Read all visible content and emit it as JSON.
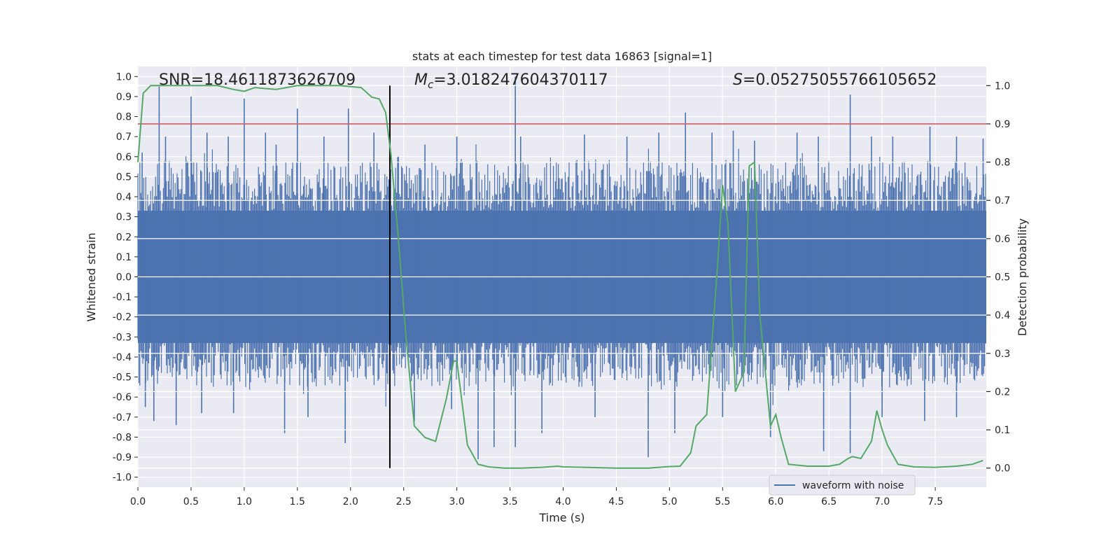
{
  "chart_data": {
    "type": "line",
    "title": "stats at each timestep for test data 16863 [signal=1]",
    "xlabel": "Time (s)",
    "ylabel": "Whitened strain",
    "y2label": "Detection probability",
    "xlim": [
      0.0,
      7.98
    ],
    "ylim": [
      -1.05,
      1.05
    ],
    "y2lim": [
      -0.05,
      1.05
    ],
    "x_ticks": [
      0.0,
      0.5,
      1.0,
      1.5,
      2.0,
      2.5,
      3.0,
      3.5,
      4.0,
      4.5,
      5.0,
      5.5,
      6.0,
      6.5,
      7.0,
      7.5
    ],
    "x_tick_labels": [
      "0.0",
      "0.5",
      "1.0",
      "1.5",
      "2.0",
      "2.5",
      "3.0",
      "3.5",
      "4.0",
      "4.5",
      "5.0",
      "5.5",
      "6.0",
      "6.5",
      "7.0",
      "7.5"
    ],
    "y_ticks": [
      1.0,
      0.9,
      0.8,
      0.7,
      0.6,
      0.5,
      0.4,
      0.3,
      0.2,
      0.1,
      0.0,
      -0.1,
      -0.2,
      -0.3,
      -0.4,
      -0.5,
      -0.6,
      -0.7,
      -0.8,
      -0.9,
      -1.0
    ],
    "y_tick_labels": [
      "1.0",
      "0.9",
      "0.8",
      "0.7",
      "0.6",
      "0.5",
      "0.4",
      "0.3",
      "0.2",
      "0.1",
      "0.0",
      "-0.1",
      "-0.2",
      "-0.3",
      "-0.4",
      "-0.5",
      "-0.6",
      "-0.7",
      "-0.8",
      "-0.9",
      "-1.0"
    ],
    "y2_ticks": [
      1.0,
      0.9,
      0.8,
      0.7,
      0.6,
      0.5,
      0.4,
      0.3,
      0.2,
      0.1,
      0.0
    ],
    "y2_tick_labels": [
      "1.0",
      "0.9",
      "0.8",
      "0.7",
      "0.6",
      "0.5",
      "0.4",
      "0.3",
      "0.2",
      "0.1",
      "0.0"
    ],
    "grid": true,
    "annotations": {
      "snr": "SNR=18.4611873626709",
      "mc_symbol": "M",
      "mc_subscript": "c",
      "mc_value": "=3.018247604370117",
      "s_symbol": "S",
      "s_value": "=0.05275055766105652"
    },
    "threshold_line": {
      "y2": 0.9,
      "color": "#c44e52"
    },
    "vertical_marker": {
      "x": 2.37,
      "y2_range": [
        0.0,
        1.0
      ],
      "color": "#000000"
    },
    "waveform": {
      "name": "waveform with noise",
      "color": "#4c72b0",
      "core_band": [
        -0.33,
        0.33
      ],
      "spikes_up": [
        [
          0.04,
          0.62
        ],
        [
          0.2,
          0.95
        ],
        [
          0.26,
          0.7
        ],
        [
          0.5,
          0.9
        ],
        [
          0.65,
          0.72
        ],
        [
          0.85,
          0.7
        ],
        [
          1.0,
          0.89
        ],
        [
          1.2,
          0.72
        ],
        [
          1.3,
          0.66
        ],
        [
          1.5,
          0.84
        ],
        [
          1.75,
          0.7
        ],
        [
          1.98,
          0.84
        ],
        [
          2.22,
          0.72
        ],
        [
          2.45,
          0.6
        ],
        [
          2.7,
          0.66
        ],
        [
          3.0,
          0.7
        ],
        [
          3.55,
          1.0
        ],
        [
          3.6,
          0.7
        ],
        [
          4.2,
          0.71
        ],
        [
          4.6,
          0.7
        ],
        [
          4.9,
          0.72
        ],
        [
          5.15,
          0.82
        ],
        [
          5.4,
          0.72
        ],
        [
          5.6,
          0.73
        ],
        [
          5.8,
          0.68
        ],
        [
          6.2,
          0.72
        ],
        [
          6.4,
          0.7
        ],
        [
          6.7,
          0.91
        ],
        [
          6.9,
          0.7
        ],
        [
          7.1,
          0.7
        ],
        [
          7.45,
          0.75
        ],
        [
          7.7,
          0.7
        ],
        [
          7.95,
          0.69
        ]
      ],
      "spikes_down": [
        [
          0.07,
          -0.65
        ],
        [
          0.15,
          -0.72
        ],
        [
          0.36,
          -0.74
        ],
        [
          0.6,
          -0.68
        ],
        [
          0.9,
          -0.68
        ],
        [
          1.38,
          -0.78
        ],
        [
          1.6,
          -0.7
        ],
        [
          1.95,
          -0.83
        ],
        [
          2.37,
          -0.65
        ],
        [
          2.6,
          -0.72
        ],
        [
          2.95,
          -0.66
        ],
        [
          3.2,
          -0.91
        ],
        [
          3.35,
          -0.85
        ],
        [
          3.55,
          -0.85
        ],
        [
          3.8,
          -0.78
        ],
        [
          4.3,
          -0.7
        ],
        [
          4.8,
          -0.9
        ],
        [
          5.05,
          -0.78
        ],
        [
          5.5,
          -0.7
        ],
        [
          5.95,
          -0.8
        ],
        [
          6.45,
          -0.87
        ],
        [
          6.7,
          -0.88
        ],
        [
          7.0,
          -0.7
        ],
        [
          7.4,
          -0.72
        ],
        [
          7.7,
          -0.7
        ]
      ]
    },
    "detection_probability": {
      "color": "#55a868",
      "x": [
        0.0,
        0.05,
        0.12,
        0.25,
        0.5,
        0.75,
        0.9,
        1.0,
        1.1,
        1.3,
        1.5,
        1.7,
        1.9,
        2.1,
        2.2,
        2.27,
        2.33,
        2.38,
        2.45,
        2.52,
        2.6,
        2.7,
        2.8,
        2.9,
        2.97,
        3.0,
        3.1,
        3.2,
        3.3,
        3.45,
        3.6,
        3.8,
        3.95,
        4.0,
        4.2,
        4.5,
        4.8,
        5.0,
        5.1,
        5.2,
        5.25,
        5.35,
        5.45,
        5.5,
        5.55,
        5.62,
        5.7,
        5.75,
        5.8,
        5.85,
        5.95,
        6.0,
        6.05,
        6.12,
        6.3,
        6.5,
        6.6,
        6.68,
        6.72,
        6.8,
        6.9,
        6.95,
        7.0,
        7.05,
        7.15,
        7.3,
        7.5,
        7.7,
        7.85,
        7.95
      ],
      "y": [
        0.8,
        0.98,
        1.0,
        1.0,
        1.0,
        1.0,
        0.99,
        0.985,
        0.995,
        0.99,
        1.0,
        1.0,
        1.0,
        0.995,
        0.97,
        0.965,
        0.93,
        0.82,
        0.6,
        0.35,
        0.11,
        0.08,
        0.07,
        0.18,
        0.28,
        0.28,
        0.06,
        0.01,
        0.003,
        0.0,
        0.0,
        0.002,
        0.005,
        0.003,
        0.002,
        0.0,
        0.0,
        0.004,
        0.005,
        0.04,
        0.11,
        0.14,
        0.52,
        0.74,
        0.64,
        0.2,
        0.25,
        0.79,
        0.8,
        0.4,
        0.11,
        0.14,
        0.08,
        0.01,
        0.005,
        0.005,
        0.01,
        0.025,
        0.03,
        0.025,
        0.07,
        0.15,
        0.1,
        0.06,
        0.01,
        0.003,
        0.002,
        0.005,
        0.01,
        0.02
      ]
    },
    "legend": {
      "placement": "lower-right",
      "entries": [
        "waveform with noise"
      ]
    },
    "colors": {
      "background": "#eaeaf2",
      "grid": "#ffffff"
    }
  }
}
